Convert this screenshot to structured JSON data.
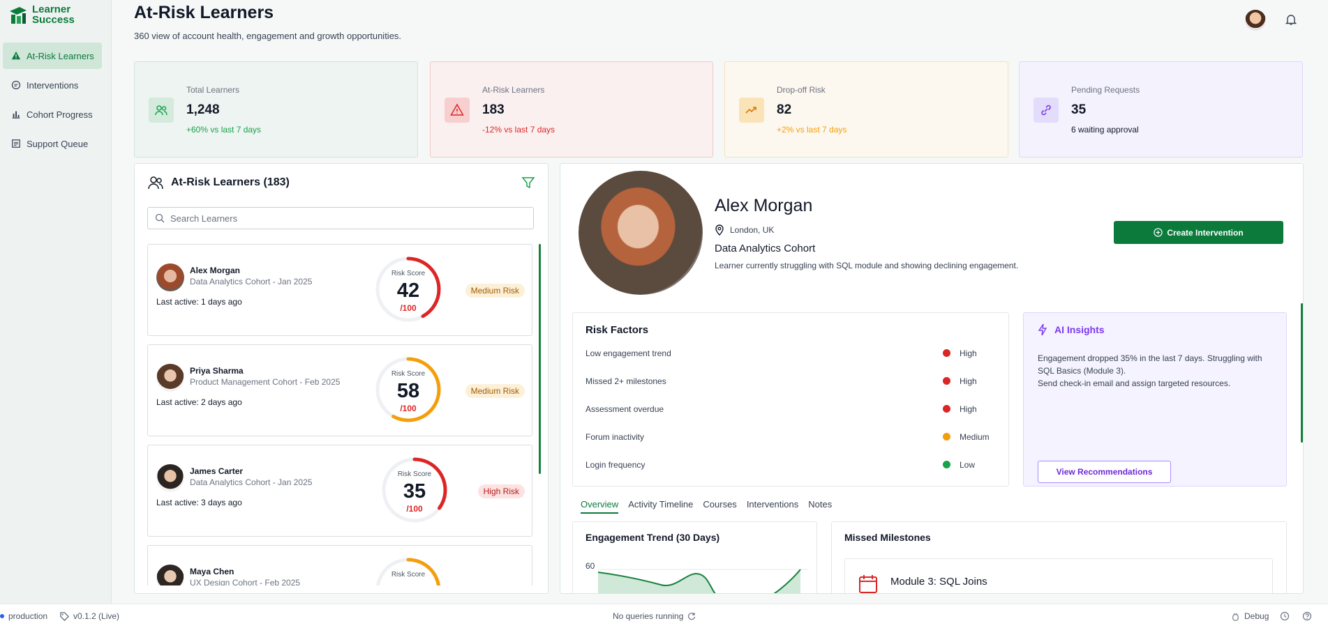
{
  "app": {
    "logo_line1": "Learner",
    "logo_line2": "Success"
  },
  "sidebar": {
    "items": [
      {
        "label": "At-Risk Learners",
        "icon": "warning-icon",
        "active": true
      },
      {
        "label": "Interventions",
        "icon": "chat-icon"
      },
      {
        "label": "Cohort Progress",
        "icon": "bar-chart-icon"
      },
      {
        "label": "Support Queue",
        "icon": "list-icon"
      }
    ]
  },
  "header": {
    "title": "At-Risk Learners",
    "subtitle": "360 view of account health, engagement and growth opportunities."
  },
  "stats": [
    {
      "label": "Total Learners",
      "value": "1,248",
      "delta": "+60% vs last 7 days",
      "delta_color": "#16a34a",
      "bg": "#eef4f1",
      "border": "#cfe3d7",
      "icon_bg": "#d3eadc",
      "icon": "users-icon"
    },
    {
      "label": "At-Risk Learners",
      "value": "183",
      "delta": "-12% vs last 7 days",
      "delta_color": "#dc2626",
      "bg": "#fbf0f0",
      "border": "#f1c9c9",
      "icon_bg": "#f7cfcf",
      "icon": "warning-icon"
    },
    {
      "label": "Drop-off Risk",
      "value": "82",
      "delta": "+2% vs last 7 days",
      "delta_color": "#f59e0b",
      "bg": "#fdf8ef",
      "border": "#f1e1c1",
      "icon_bg": "#fbe3b8",
      "icon": "trend-up-icon"
    },
    {
      "label": "Pending Requests",
      "value": "35",
      "delta": "6 waiting approval",
      "delta_color": "#111827",
      "bg": "#f4f2fd",
      "border": "#ddd6fe",
      "icon_bg": "#e4dcfb",
      "icon": "link-icon"
    }
  ],
  "learner_list": {
    "title": "At-Risk Learners (183)",
    "search_placeholder": "Search Learners",
    "gauge_label": "Risk Score",
    "gauge_max": "/100",
    "items": [
      {
        "name": "Alex Morgan",
        "cohort": "Data Analytics Cohort - Jan 2025",
        "last_active": "Last active: 1 days ago",
        "score": "42",
        "score_fraction": 0.42,
        "risk": "Medium Risk",
        "risk_level": "med",
        "ring_color": "#dc2626"
      },
      {
        "name": "Priya Sharma",
        "cohort": "Product Management Cohort - Feb 2025",
        "last_active": "Last active: 2 days ago",
        "score": "58",
        "score_fraction": 0.58,
        "risk": "Medium Risk",
        "risk_level": "med",
        "ring_color": "#f59e0b"
      },
      {
        "name": "James Carter",
        "cohort": "Data Analytics Cohort - Jan 2025",
        "last_active": "Last active: 3 days ago",
        "score": "35",
        "score_fraction": 0.35,
        "risk": "High Risk",
        "risk_level": "high",
        "ring_color": "#dc2626"
      },
      {
        "name": "Maya Chen",
        "cohort": "UX Design Cohort - Feb 2025",
        "last_active": "",
        "score": "",
        "score_fraction": 0.3,
        "risk": "",
        "risk_level": "med",
        "ring_color": "#f59e0b"
      }
    ]
  },
  "profile": {
    "name": "Alex Morgan",
    "location": "London, UK",
    "cohort": "Data Analytics Cohort",
    "description": "Learner currently struggling with SQL module and showing declining engagement.",
    "create_button": "Create Intervention"
  },
  "risk_factors": {
    "title": "Risk Factors",
    "items": [
      {
        "factor": "Low engagement trend",
        "level": "High",
        "color": "#dc2626"
      },
      {
        "factor": "Missed 2+ milestones",
        "level": "High",
        "color": "#dc2626"
      },
      {
        "factor": "Assessment overdue",
        "level": "High",
        "color": "#dc2626"
      },
      {
        "factor": "Forum inactivity",
        "level": "Medium",
        "color": "#f59e0b"
      },
      {
        "factor": "Login frequency",
        "level": "Low",
        "color": "#16a34a"
      }
    ]
  },
  "ai_insights": {
    "title": "AI Insights",
    "line1": "Engagement dropped 35% in the last 7 days. Struggling with SQL Basics (Module 3).",
    "line2": "Send check-in email and assign targeted resources.",
    "button": "View Recommendations"
  },
  "tabs": [
    "Overview",
    "Activity Timeline",
    "Courses",
    "Interventions",
    "Notes"
  ],
  "engagement": {
    "title": "Engagement Trend (30 Days)",
    "y_tick": "60"
  },
  "milestones": {
    "title": "Missed Milestones",
    "first": "Module 3: SQL Joins"
  },
  "status_bar": {
    "env": "production",
    "version": "v0.1.2 (Live)",
    "queries": "No queries running",
    "debug": "Debug"
  }
}
